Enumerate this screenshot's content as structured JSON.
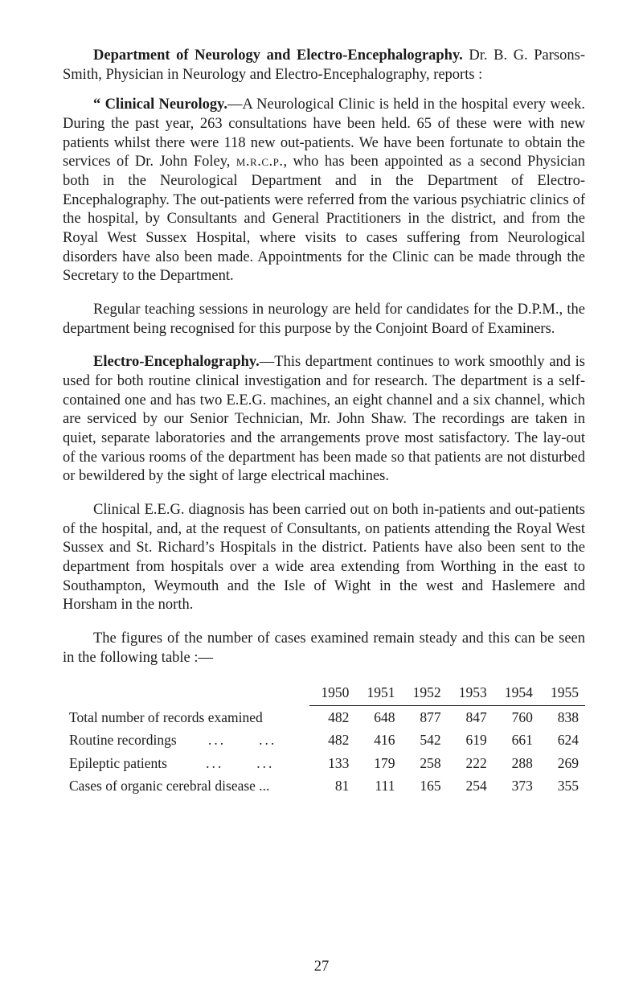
{
  "p1_heading": "Department of Neurology and Electro-Encephalography.",
  "p1_rest": " Dr. B. G. Parsons-Smith, Physician in Neurology and Electro-Encephalography, reports :",
  "p2_lead": "“ Clinical Neurology.",
  "p2_rest": "—A Neurological Clinic is held in the hospital every week. During the past year, 263 consultations have been held. 65 of these were with new patients whilst there were 118 new out-patients. We have been fortunate to obtain the services of Dr. John Foley, ",
  "p2_sc": "m.r.c.p.",
  "p2_rest2": ", who has been appointed as a second Physician both in the Neurological Department and in the Department of Electro-Encephalography. The out-patients were referred from the various psychiatric clinics of the hospital, by Consultants and General Practitioners in the district, and from the Royal West Sussex Hospital, where visits to cases suffering from Neurological disorders have also been made. Appointments for the Clinic can be made through the Secretary to the Department.",
  "p3": "Regular teaching sessions in neurology are held for candidates for the D.P.M., the department being recognised for this purpose by the Conjoint Board of Examiners.",
  "p4_lead": "Electro-Encephalography.",
  "p4_rest": "—This department continues to work smoothly and is used for both routine clinical investigation and for research. The department is a self-contained one and has two E.E.G. machines, an eight channel and a six channel, which are serviced by our Senior Technician, Mr. John Shaw. The recordings are taken in quiet, separate laboratories and the arrangements prove most satisfactory. The lay-out of the various rooms of the department has been made so that patients are not disturbed or bewildered by the sight of large electrical machines.",
  "p5": "Clinical E.E.G. diagnosis has been carried out on both in-patients and out-patients of the hospital, and, at the request of Consultants, on patients attending the Royal West Sussex and St. Richard’s Hospitals in the district. Patients have also been sent to the department from hospitals over a wide area extending from Worthing in the east to Southampton, Weymouth and the Isle of Wight in the west and Haslemere and Horsham in the north.",
  "p6": "The figures of the number of cases examined remain steady and this can be seen in the following table :—",
  "table": {
    "years": [
      "1950",
      "1951",
      "1952",
      "1953",
      "1954",
      "1955"
    ],
    "rows": [
      {
        "label": "Total number of records examined",
        "vals": [
          "482",
          "648",
          "877",
          "847",
          "760",
          "838"
        ]
      },
      {
        "label": "Routine recordings",
        "dots": "...  ...",
        "vals": [
          "482",
          "416",
          "542",
          "619",
          "661",
          "624"
        ]
      },
      {
        "label": "Epileptic patients",
        "dots": "...  ...",
        "vals": [
          "133",
          "179",
          "258",
          "222",
          "288",
          "269"
        ]
      },
      {
        "label": "Cases of organic cerebral disease ...",
        "vals": [
          "81",
          "111",
          "165",
          "254",
          "373",
          "355"
        ]
      }
    ]
  },
  "page_number": "27"
}
